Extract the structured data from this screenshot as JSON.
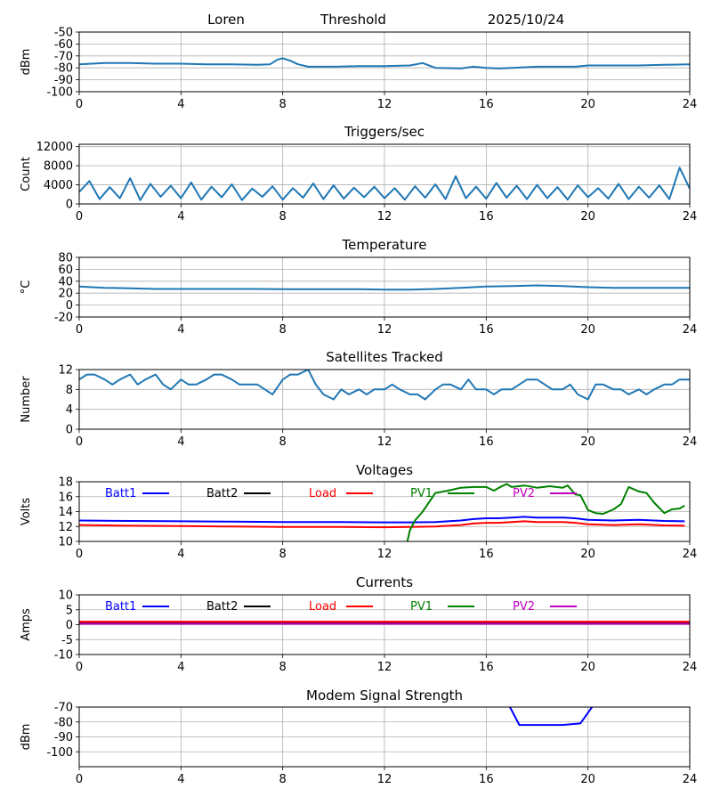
{
  "header": {
    "station": "Loren",
    "mode": "Threshold",
    "date": "2025/10/24"
  },
  "chart_data": [
    {
      "type": "line",
      "title": "",
      "xlabel": "",
      "ylabel": "dBm",
      "xlim": [
        0,
        24
      ],
      "ylim": [
        -100,
        -50
      ],
      "xticks": [
        "0",
        "4",
        "8",
        "12",
        "16",
        "20",
        "24"
      ],
      "yticks": [
        "-100",
        "-90",
        "-80",
        "-70",
        "-60",
        "-50"
      ],
      "series": [
        {
          "name": "Threshold",
          "color": "#1f77b4",
          "x": [
            0,
            0.5,
            1,
            2,
            3,
            4,
            5,
            6,
            7,
            7.5,
            7.8,
            8,
            8.3,
            8.6,
            9,
            10,
            11,
            12,
            13,
            13.5,
            14,
            15,
            15.5,
            16,
            16.5,
            17,
            18,
            19,
            19.5,
            20,
            21,
            22,
            23,
            24
          ],
          "y": [
            -77,
            -76.5,
            -76,
            -76,
            -76.5,
            -76.5,
            -77,
            -77,
            -77.5,
            -77,
            -73,
            -72,
            -74,
            -77,
            -79,
            -79,
            -78.5,
            -78.5,
            -78,
            -76,
            -80,
            -80.5,
            -79,
            -80,
            -80.5,
            -80,
            -79,
            -79,
            -79,
            -78,
            -78,
            -78,
            -77.5,
            -77
          ]
        }
      ]
    },
    {
      "type": "line",
      "title": "Triggers/sec",
      "xlabel": "",
      "ylabel": "Count",
      "xlim": [
        0,
        24
      ],
      "ylim": [
        0,
        12500
      ],
      "xticks": [
        "0",
        "4",
        "8",
        "12",
        "16",
        "20",
        "24"
      ],
      "yticks": [
        "0",
        "4000",
        "8000",
        "12000"
      ],
      "series": [
        {
          "name": "Triggers",
          "color": "#1f77b4",
          "x": [
            0,
            0.4,
            0.8,
            1.2,
            1.6,
            2,
            2.4,
            2.8,
            3.2,
            3.6,
            4,
            4.4,
            4.8,
            5.2,
            5.6,
            6,
            6.4,
            6.8,
            7.2,
            7.6,
            8,
            8.4,
            8.8,
            9.2,
            9.6,
            10,
            10.4,
            10.8,
            11.2,
            11.6,
            12,
            12.4,
            12.8,
            13.2,
            13.6,
            14,
            14.4,
            14.8,
            15.2,
            15.6,
            16,
            16.4,
            16.8,
            17.2,
            17.6,
            18,
            18.4,
            18.8,
            19.2,
            19.6,
            20,
            20.4,
            20.8,
            21.2,
            21.6,
            22,
            22.4,
            22.8,
            23.2,
            23.6,
            24
          ],
          "y": [
            2500,
            4800,
            1000,
            3500,
            1200,
            5400,
            800,
            4200,
            1500,
            3800,
            1200,
            4500,
            900,
            3600,
            1400,
            4100,
            800,
            3200,
            1500,
            3700,
            900,
            3300,
            1300,
            4300,
            1000,
            3900,
            1100,
            3400,
            1400,
            3600,
            1200,
            3300,
            900,
            3700,
            1300,
            4100,
            1000,
            5800,
            1200,
            3600,
            1100,
            4400,
            1300,
            3800,
            1000,
            4000,
            1200,
            3500,
            900,
            3900,
            1400,
            3300,
            1100,
            4200,
            1000,
            3600,
            1300,
            3900,
            1000,
            7600,
            3200
          ]
        }
      ]
    },
    {
      "type": "line",
      "title": "Temperature",
      "xlabel": "",
      "ylabel": "°C",
      "xlim": [
        0,
        24
      ],
      "ylim": [
        -20,
        80
      ],
      "xticks": [
        "0",
        "4",
        "8",
        "12",
        "16",
        "20",
        "24"
      ],
      "yticks": [
        "-20",
        "0",
        "20",
        "40",
        "60",
        "80"
      ],
      "series": [
        {
          "name": "Temperature",
          "color": "#1f77b4",
          "x": [
            0,
            1,
            2,
            3,
            4,
            5,
            6,
            7,
            8,
            9,
            10,
            11,
            12,
            13,
            14,
            15,
            16,
            17,
            18,
            19,
            20,
            21,
            22,
            23,
            24
          ],
          "y": [
            31,
            29,
            28,
            27,
            27,
            27,
            27,
            27,
            26.5,
            26.5,
            26.5,
            26.5,
            26,
            26,
            27,
            29,
            31,
            32,
            33,
            32,
            30,
            29,
            29,
            29,
            29
          ]
        }
      ]
    },
    {
      "type": "line",
      "title": "Satellites Tracked",
      "xlabel": "",
      "ylabel": "Number",
      "xlim": [
        0,
        24
      ],
      "ylim": [
        0,
        12
      ],
      "xticks": [
        "0",
        "4",
        "8",
        "12",
        "16",
        "20",
        "24"
      ],
      "yticks": [
        "0",
        "4",
        "8",
        "12"
      ],
      "series": [
        {
          "name": "Satellites",
          "color": "#1f77b4",
          "x": [
            0,
            0.3,
            0.6,
            1,
            1.3,
            1.6,
            2,
            2.3,
            2.6,
            3,
            3.3,
            3.6,
            4,
            4.3,
            4.6,
            5,
            5.3,
            5.6,
            6,
            6.3,
            6.6,
            7,
            7.3,
            7.6,
            8,
            8.3,
            8.6,
            9,
            9.3,
            9.6,
            10,
            10.3,
            10.6,
            11,
            11.3,
            11.6,
            12,
            12.3,
            12.6,
            13,
            13.3,
            13.6,
            14,
            14.3,
            14.6,
            15,
            15.3,
            15.6,
            16,
            16.3,
            16.6,
            17,
            17.3,
            17.6,
            18,
            18.3,
            18.6,
            19,
            19.3,
            19.6,
            20,
            20.3,
            20.6,
            21,
            21.3,
            21.6,
            22,
            22.3,
            22.6,
            23,
            23.3,
            23.6,
            24
          ],
          "y": [
            10,
            11,
            11,
            10,
            9,
            10,
            11,
            9,
            10,
            11,
            9,
            8,
            10,
            9,
            9,
            10,
            11,
            11,
            10,
            9,
            9,
            9,
            8,
            7,
            10,
            11,
            11,
            12,
            9,
            7,
            6,
            8,
            7,
            8,
            7,
            8,
            8,
            9,
            8,
            7,
            7,
            6,
            8,
            9,
            9,
            8,
            10,
            8,
            8,
            7,
            8,
            8,
            9,
            10,
            10,
            9,
            8,
            8,
            9,
            7,
            6,
            9,
            9,
            8,
            8,
            7,
            8,
            7,
            8,
            9,
            9,
            10,
            10
          ]
        }
      ]
    },
    {
      "type": "line",
      "title": "Voltages",
      "xlabel": "",
      "ylabel": "Volts",
      "xlim": [
        0,
        24
      ],
      "ylim": [
        10,
        18
      ],
      "xticks": [
        "0",
        "4",
        "8",
        "12",
        "16",
        "20",
        "24"
      ],
      "yticks": [
        "10",
        "12",
        "14",
        "16",
        "18"
      ],
      "legend": [
        "Batt1",
        "Batt2",
        "Load",
        "PV1",
        "PV2"
      ],
      "series": [
        {
          "name": "Batt1",
          "color": "#0000ff",
          "x": [
            0,
            2,
            4,
            6,
            8,
            10,
            12,
            13,
            14,
            15,
            15.5,
            16,
            16.5,
            17,
            17.5,
            18,
            18.5,
            19,
            19.5,
            20,
            21,
            22,
            23,
            23.8
          ],
          "y": [
            12.8,
            12.75,
            12.7,
            12.65,
            12.6,
            12.6,
            12.55,
            12.55,
            12.6,
            12.8,
            13.0,
            13.1,
            13.1,
            13.2,
            13.3,
            13.2,
            13.2,
            13.2,
            13.1,
            12.9,
            12.8,
            12.9,
            12.75,
            12.7
          ]
        },
        {
          "name": "Batt2",
          "color": "#000000",
          "x": [],
          "y": []
        },
        {
          "name": "Load",
          "color": "#ff0000",
          "x": [
            0,
            2,
            4,
            6,
            8,
            10,
            12,
            13,
            14,
            15,
            15.5,
            16,
            16.5,
            17,
            17.5,
            18,
            18.5,
            19,
            19.5,
            20,
            21,
            22,
            23,
            23.8
          ],
          "y": [
            12.2,
            12.1,
            12.05,
            12.0,
            11.95,
            11.95,
            11.9,
            11.95,
            12.0,
            12.2,
            12.4,
            12.5,
            12.5,
            12.6,
            12.7,
            12.6,
            12.6,
            12.6,
            12.5,
            12.3,
            12.2,
            12.3,
            12.15,
            12.1
          ]
        },
        {
          "name": "PV1",
          "color": "#008000",
          "x": [
            12.9,
            13.0,
            13.2,
            13.5,
            14,
            14.5,
            15,
            15.5,
            16,
            16.3,
            16.5,
            16.8,
            17,
            17.5,
            18,
            18.5,
            19,
            19.2,
            19.5,
            19.7,
            20,
            20.3,
            20.6,
            21,
            21.3,
            21.6,
            22,
            22.3,
            22.6,
            23,
            23.3,
            23.6,
            23.8
          ],
          "y": [
            10,
            11.5,
            12.8,
            14.0,
            16.5,
            16.8,
            17.2,
            17.3,
            17.3,
            16.8,
            17.2,
            17.7,
            17.3,
            17.5,
            17.2,
            17.4,
            17.2,
            17.5,
            16.3,
            16.2,
            14.2,
            13.8,
            13.7,
            14.3,
            15.0,
            17.3,
            16.7,
            16.5,
            15.2,
            13.8,
            14.3,
            14.4,
            14.8
          ]
        },
        {
          "name": "PV2",
          "color": "#bf00bf",
          "x": [],
          "y": []
        }
      ]
    },
    {
      "type": "line",
      "title": "Currents",
      "xlabel": "",
      "ylabel": "Amps",
      "xlim": [
        0,
        24
      ],
      "ylim": [
        -10,
        10
      ],
      "xticks": [
        "0",
        "4",
        "8",
        "12",
        "16",
        "20",
        "24"
      ],
      "yticks": [
        "-10",
        "-5",
        "0",
        "5",
        "10"
      ],
      "legend": [
        "Batt1",
        "Batt2",
        "Load",
        "PV1",
        "PV2"
      ],
      "series": [
        {
          "name": "Batt1",
          "color": "#0000ff",
          "x": [
            0,
            24
          ],
          "y": [
            0.6,
            0.6
          ]
        },
        {
          "name": "Batt2",
          "color": "#000000",
          "x": [
            0,
            24
          ],
          "y": [
            0.8,
            0.8
          ]
        },
        {
          "name": "Load",
          "color": "#ff0000",
          "x": [
            0,
            24
          ],
          "y": [
            1.0,
            1.0
          ]
        },
        {
          "name": "PV1",
          "color": "#008000",
          "x": [],
          "y": []
        },
        {
          "name": "PV2",
          "color": "#bf00bf",
          "x": [
            0,
            24
          ],
          "y": [
            0.3,
            0.3
          ]
        }
      ]
    },
    {
      "type": "line",
      "title": "Modem Signal Strength",
      "xlabel": "",
      "ylabel": "dBm",
      "xlim": [
        0,
        24
      ],
      "ylim": [
        -110,
        -70
      ],
      "xticks": [
        "0",
        "4",
        "8",
        "12",
        "16",
        "20",
        "24"
      ],
      "yticks": [
        "-100",
        "-90",
        "-80",
        "-70"
      ],
      "series": [
        {
          "name": "Modem",
          "color": "#0000ff",
          "x": [
            16.9,
            17.3,
            18,
            19,
            19.7,
            20.2
          ],
          "y": [
            -69,
            -82,
            -82,
            -82,
            -81,
            -69
          ]
        }
      ]
    }
  ]
}
